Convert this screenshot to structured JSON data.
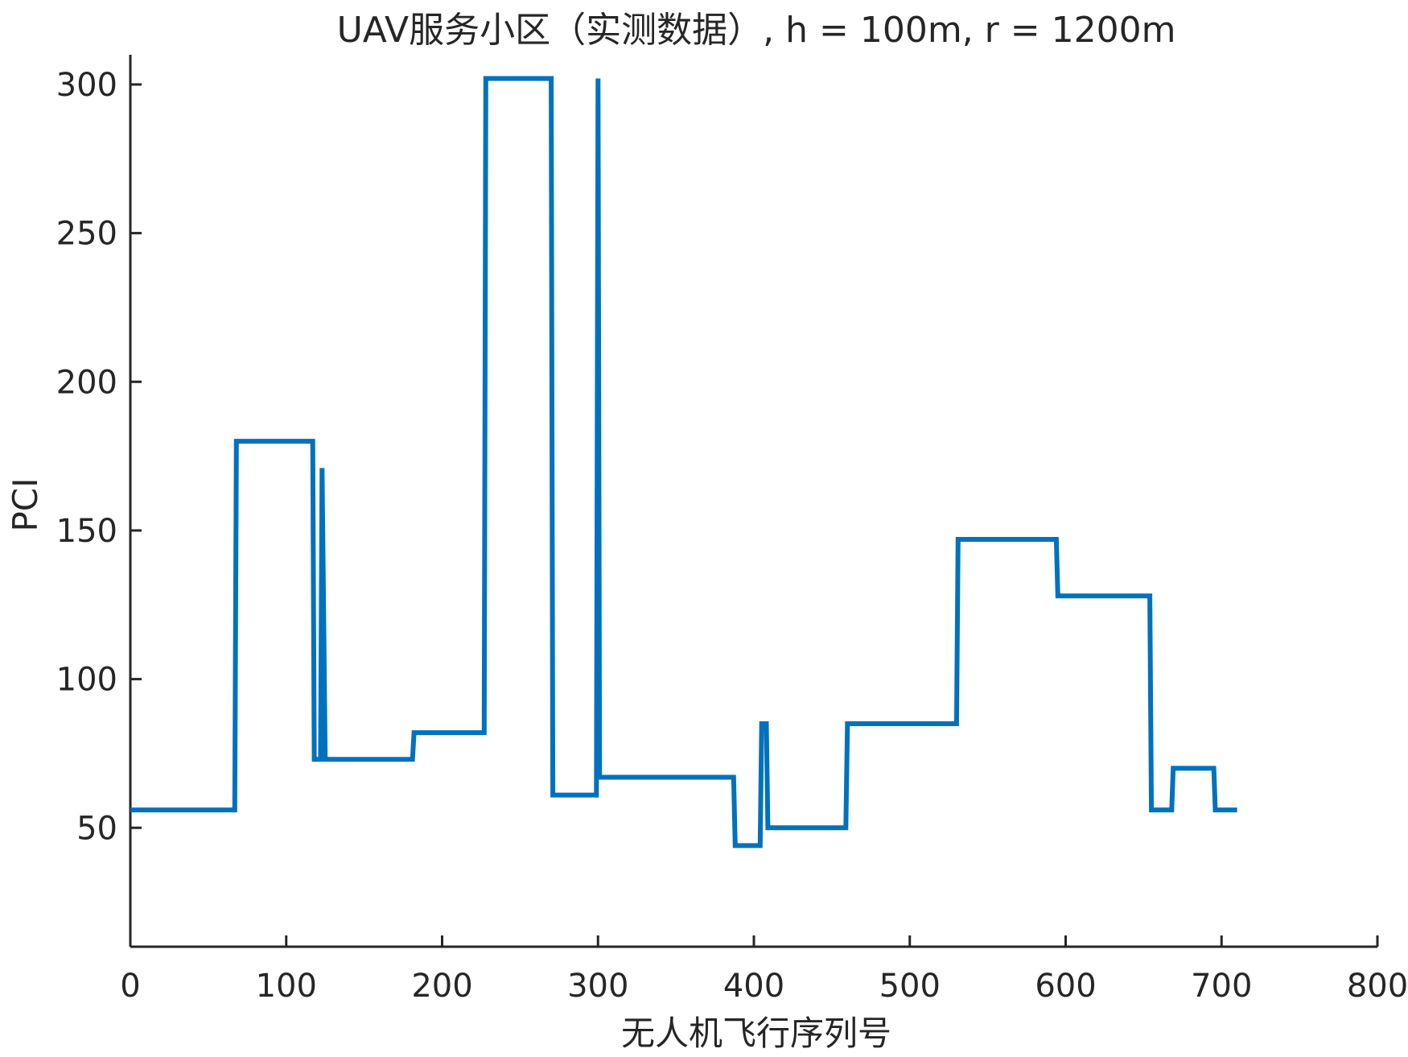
{
  "chart_data": {
    "type": "line",
    "title": "UAV服务小区（实测数据）, h = 100m, r = 1200m",
    "xlabel": "无人机飞行序列号",
    "ylabel": "PCI",
    "xlim": [
      0,
      800
    ],
    "ylim": [
      10,
      310
    ],
    "xticks": [
      0,
      100,
      200,
      300,
      400,
      500,
      600,
      700,
      800
    ],
    "yticks": [
      50,
      100,
      150,
      200,
      250,
      300
    ],
    "grid": false,
    "color": "#0072BD",
    "series": [
      {
        "x": [
          0,
          67,
          68,
          117,
          118,
          122,
          123,
          125,
          126,
          181,
          182,
          227,
          228,
          270,
          271,
          299,
          300,
          301,
          302,
          387,
          388,
          404,
          405,
          408,
          409,
          459,
          460,
          530,
          531,
          594,
          595,
          654,
          655,
          668,
          669,
          695,
          696,
          710
        ],
        "y": [
          56,
          56,
          180,
          180,
          73,
          73,
          171,
          73,
          73,
          73,
          82,
          82,
          302,
          302,
          61,
          61,
          302,
          67,
          67,
          67,
          44,
          44,
          85,
          85,
          50,
          50,
          85,
          85,
          147,
          147,
          128,
          128,
          56,
          56,
          70,
          70,
          56,
          56
        ]
      }
    ]
  }
}
